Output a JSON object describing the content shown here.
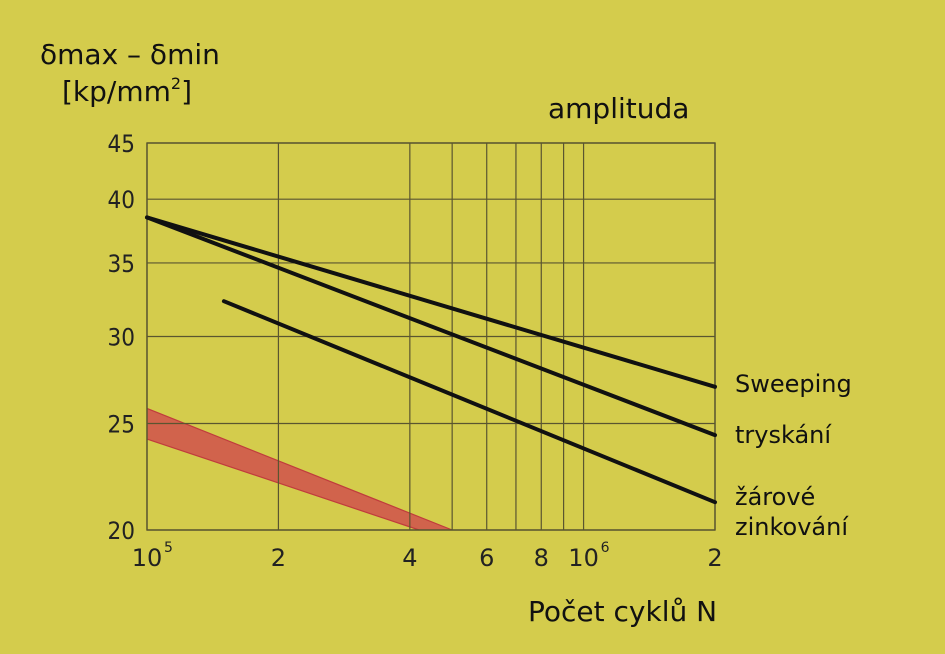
{
  "colors": {
    "background": "#d4cc4c",
    "grid": "#5a5530",
    "series_line": "#111111",
    "band": "#d0504c"
  },
  "labels": {
    "ylabel_line1": "δmax – δmin",
    "ylabel_line2_main": "[kp/mm",
    "ylabel_line2_sup": "2",
    "ylabel_line2_end": "]",
    "legend_title": "amplituda",
    "xlabel": "Počet cyklů N",
    "series_1": "Sweeping",
    "series_2": "tryskání",
    "series_3_line1": "žárové",
    "series_3_line2": "zinkování"
  },
  "chart_data": {
    "type": "line",
    "x_scale": "log",
    "y_scale": "log",
    "xlim": [
      100000,
      2000000
    ],
    "ylim": [
      20,
      45
    ],
    "grid": true,
    "xlabel": "Počet cyklů N",
    "ylabel": "δmax – δmin [kp/mm2]",
    "x_ticks": [
      {
        "value": 100000,
        "label": "10",
        "sup": "5"
      },
      {
        "value": 200000,
        "label": "2",
        "sup": ""
      },
      {
        "value": 400000,
        "label": "4",
        "sup": ""
      },
      {
        "value": 600000,
        "label": "6",
        "sup": ""
      },
      {
        "value": 800000,
        "label": "8",
        "sup": ""
      },
      {
        "value": 1000000,
        "label": "10",
        "sup": "6"
      },
      {
        "value": 2000000,
        "label": "2",
        "sup": ""
      }
    ],
    "x_minor_grid": [
      500000,
      700000,
      900000
    ],
    "y_ticks": [
      {
        "value": 20,
        "label": "20"
      },
      {
        "value": 25,
        "label": "25"
      },
      {
        "value": 30,
        "label": "30"
      },
      {
        "value": 35,
        "label": "35"
      },
      {
        "value": 40,
        "label": "40"
      },
      {
        "value": 45,
        "label": "45"
      }
    ],
    "series": [
      {
        "name": "Sweeping",
        "points": [
          [
            100000,
            38.5
          ],
          [
            2000000,
            27.0
          ]
        ]
      },
      {
        "name": "tryskání",
        "points": [
          [
            100000,
            38.5
          ],
          [
            2000000,
            24.4
          ]
        ]
      },
      {
        "name": "žárové zinkování",
        "points": [
          [
            150000,
            32.3
          ],
          [
            2000000,
            21.2
          ]
        ]
      }
    ],
    "band": {
      "upper": [
        [
          100000,
          25.8
        ],
        [
          500000,
          20.0
        ]
      ],
      "lower": [
        [
          100000,
          24.2
        ],
        [
          420000,
          20.0
        ]
      ]
    }
  }
}
